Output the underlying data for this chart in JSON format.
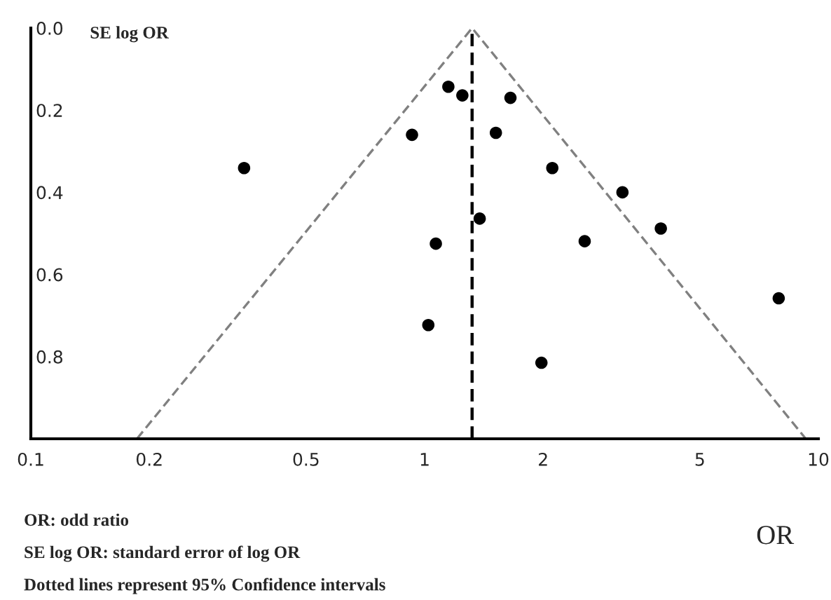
{
  "chart_data": {
    "type": "scatter",
    "xlabel": "OR",
    "ylabel": "SE log OR",
    "log": "x",
    "xlim": [
      0.1,
      10
    ],
    "xticks": [
      0.1,
      0.2,
      0.5,
      1,
      2,
      5,
      10
    ],
    "ylim": [
      1.0,
      0.0
    ],
    "yticks": [
      {
        "value": 0,
        "label": "0.0"
      },
      0.2,
      0.4,
      0.6,
      0.8
    ],
    "grid": false,
    "legend": false,
    "marker": "circle",
    "series": [
      {
        "color": "#000000",
        "x": [
          0.348,
          0.929,
          1.068,
          1.022,
          1.149,
          1.247,
          1.652,
          1.517,
          2.11,
          3.18,
          1.38,
          3.98,
          2.55,
          7.93,
          1.98
        ],
        "values": [
          0.341,
          0.26,
          0.525,
          0.723,
          0.143,
          0.164,
          0.17,
          0.255,
          0.341,
          0.4,
          0.464,
          0.488,
          0.519,
          0.658,
          0.815
        ]
      },
      {
        "type": "line",
        "color": "#808080",
        "line_style": "dashed",
        "marker": "none",
        "x": [
          0.186,
          1.32,
          9.29
        ],
        "values": [
          1.0,
          0.0,
          1.0
        ]
      }
    ],
    "ref_lines": [
      {
        "axis": "x",
        "value": 1.32,
        "color": "#000000",
        "line_style": "dashed"
      }
    ],
    "annotations": [
      "OR: odd ratio",
      "SE log OR: standard error of log OR",
      "Dotted lines represent 95% Confidence intervals"
    ]
  }
}
